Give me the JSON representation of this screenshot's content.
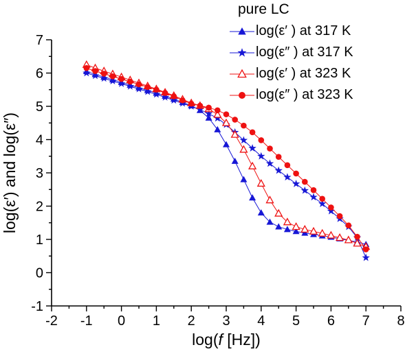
{
  "legend": {
    "title": "pure LC"
  },
  "axes": {
    "xlabel": {
      "prefix": "log(",
      "italic": "f",
      "suffix": " [Hz])"
    },
    "ylabel": "log(ε′) and log(ε″)",
    "x": {
      "min": -2,
      "max": 8,
      "major": 1,
      "minor": 0.5
    },
    "y": {
      "min": -1,
      "max": 7,
      "major": 1,
      "minor": 0.5
    }
  },
  "colors": {
    "blue": "#1717d6",
    "red": "#ee1111",
    "axis": "#000000"
  },
  "chart_data": {
    "type": "line",
    "markers": true,
    "title": "pure LC",
    "xlabel": "log(f [Hz])",
    "ylabel": "log(ε′) and log(ε″)",
    "xlim": [
      -2,
      8
    ],
    "ylim": [
      -1,
      7
    ],
    "grid": false,
    "legend_position": "top-right",
    "x": [
      -1,
      -0.75,
      -0.5,
      -0.25,
      0,
      0.25,
      0.5,
      0.75,
      1,
      1.25,
      1.5,
      1.75,
      2,
      2.25,
      2.5,
      2.75,
      3,
      3.25,
      3.5,
      3.75,
      4,
      4.25,
      4.5,
      4.75,
      5,
      5.25,
      5.5,
      5.75,
      6,
      6.25,
      6.5,
      6.75,
      7
    ],
    "series": [
      {
        "label": "log(ε′ ) at 317 K",
        "marker": "triangle-filled",
        "color": "#1717d6",
        "values": [
          6.05,
          5.96,
          5.88,
          5.8,
          5.72,
          5.64,
          5.56,
          5.48,
          5.4,
          5.31,
          5.22,
          5.12,
          5.02,
          4.88,
          4.65,
          4.3,
          3.85,
          3.35,
          2.8,
          2.25,
          1.8,
          1.52,
          1.38,
          1.3,
          1.24,
          1.19,
          1.15,
          1.11,
          1.07,
          1.02,
          0.97,
          0.92,
          0.85
        ]
      },
      {
        "label": "log(ε″ ) at 317 K",
        "marker": "star-filled",
        "color": "#1717d6",
        "values": [
          6.0,
          5.92,
          5.84,
          5.76,
          5.68,
          5.6,
          5.52,
          5.44,
          5.36,
          5.27,
          5.18,
          5.09,
          5.0,
          4.9,
          4.78,
          4.64,
          4.45,
          4.22,
          3.98,
          3.74,
          3.5,
          3.28,
          3.07,
          2.87,
          2.67,
          2.47,
          2.27,
          2.07,
          1.85,
          1.62,
          1.38,
          1.05,
          0.45
        ]
      },
      {
        "label": "log(ε′ ) at 323 K",
        "marker": "triangle-open",
        "color": "#ee1111",
        "values": [
          6.25,
          6.15,
          6.06,
          5.97,
          5.88,
          5.79,
          5.7,
          5.61,
          5.52,
          5.42,
          5.32,
          5.21,
          5.1,
          5.02,
          4.92,
          4.75,
          4.5,
          4.15,
          3.7,
          3.2,
          2.68,
          2.18,
          1.78,
          1.52,
          1.38,
          1.3,
          1.24,
          1.18,
          1.12,
          1.05,
          0.98,
          0.88,
          0.78
        ]
      },
      {
        "label": "log(ε″ ) at 323 K",
        "marker": "circle-filled",
        "color": "#ee1111",
        "values": [
          6.15,
          6.06,
          5.98,
          5.9,
          5.82,
          5.74,
          5.66,
          5.58,
          5.5,
          5.4,
          5.3,
          5.18,
          5.08,
          5.02,
          4.96,
          4.88,
          4.76,
          4.6,
          4.42,
          4.22,
          3.98,
          3.73,
          3.48,
          3.23,
          2.98,
          2.73,
          2.48,
          2.22,
          1.96,
          1.7,
          1.42,
          1.08,
          0.7
        ]
      }
    ]
  }
}
